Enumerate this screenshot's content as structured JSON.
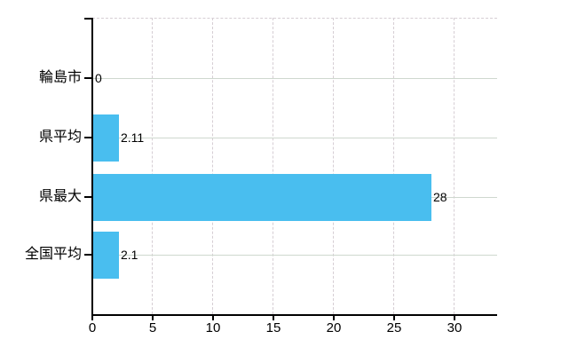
{
  "chart": {
    "background_color": "#ffffff",
    "bar_color": "#49BEEF",
    "axis_color": "#000000",
    "text_color": "#000000",
    "vertical_grid_color": "#d6ced4",
    "horizontal_grid_color": "#cfd8cf",
    "top_border_color": "#d6ced4"
  },
  "chart_data": {
    "type": "bar",
    "orientation": "horizontal",
    "title": "",
    "xlabel": "",
    "ylabel": "",
    "categories": [
      "輪島市",
      "県平均",
      "県最大",
      "全国平均"
    ],
    "values": [
      0,
      2.11,
      28,
      2.1
    ],
    "value_labels": [
      "0",
      "2.11",
      "28",
      "2.1"
    ],
    "x_ticks": [
      0,
      5,
      10,
      15,
      20,
      25,
      30
    ],
    "xlim": [
      0,
      33.6
    ],
    "grid": "both",
    "grid_vertical_style": "dashed",
    "grid_horizontal_style": "solid",
    "legend_position": "none"
  }
}
